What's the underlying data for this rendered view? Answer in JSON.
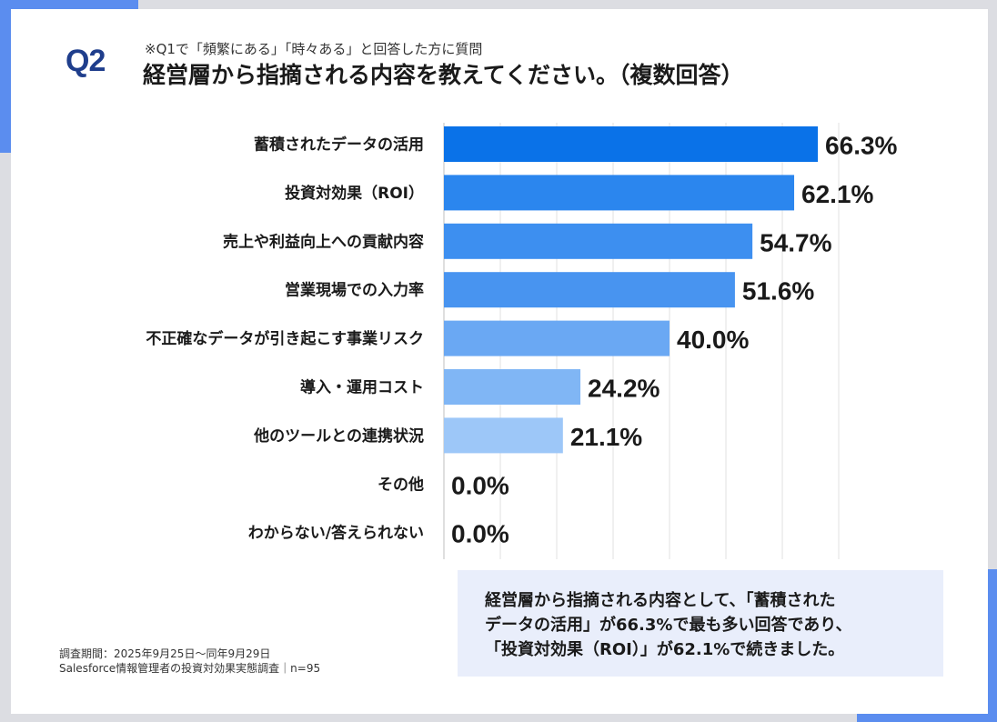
{
  "header": {
    "question_label": "Q2",
    "note": "※Q1で「頻繁にある」「時々ある」と回答した方に質問",
    "title": "経営層から指摘される内容を教えてください。（複数回答）"
  },
  "chart_data": {
    "type": "bar",
    "orientation": "horizontal",
    "categories": [
      "蓄積されたデータの活用",
      "投資対効果（ROI）",
      "売上や利益向上への貢献内容",
      "営業現場での入力率",
      "不正確なデータが引き起こす事業リスク",
      "導入・運用コスト",
      "他のツールとの連携状況",
      "その他",
      "わからない/答えられない"
    ],
    "values": [
      66.3,
      62.1,
      54.7,
      51.6,
      40.0,
      24.2,
      21.1,
      0.0,
      0.0
    ],
    "value_labels": [
      "66.3%",
      "62.1%",
      "54.7%",
      "51.6%",
      "40.0%",
      "24.2%",
      "21.1%",
      "0.0%",
      "0.0%"
    ],
    "bar_colors": [
      "#0a72e8",
      "#2b86ee",
      "#3d8ff0",
      "#4894f0",
      "#6aa8f3",
      "#80b6f5",
      "#9dc7f8",
      "#9dc7f8",
      "#9dc7f8"
    ],
    "xlim": [
      0,
      70
    ],
    "gridlines": [
      0,
      10,
      20,
      30,
      40,
      50,
      60,
      70
    ],
    "grid": true,
    "legend": "none"
  },
  "summary": {
    "lines": [
      "経営層から指摘される内容として、「蓄積された",
      "データの活用」が66.3%で最も多い回答であり、",
      "「投資対効果（ROI）」が62.1%で続きました。"
    ]
  },
  "footer": {
    "period": "調査期間：2025年9月25日～同年9月29日",
    "survey": "Salesforce情報管理者の投資対効果実態調査｜n=95"
  }
}
